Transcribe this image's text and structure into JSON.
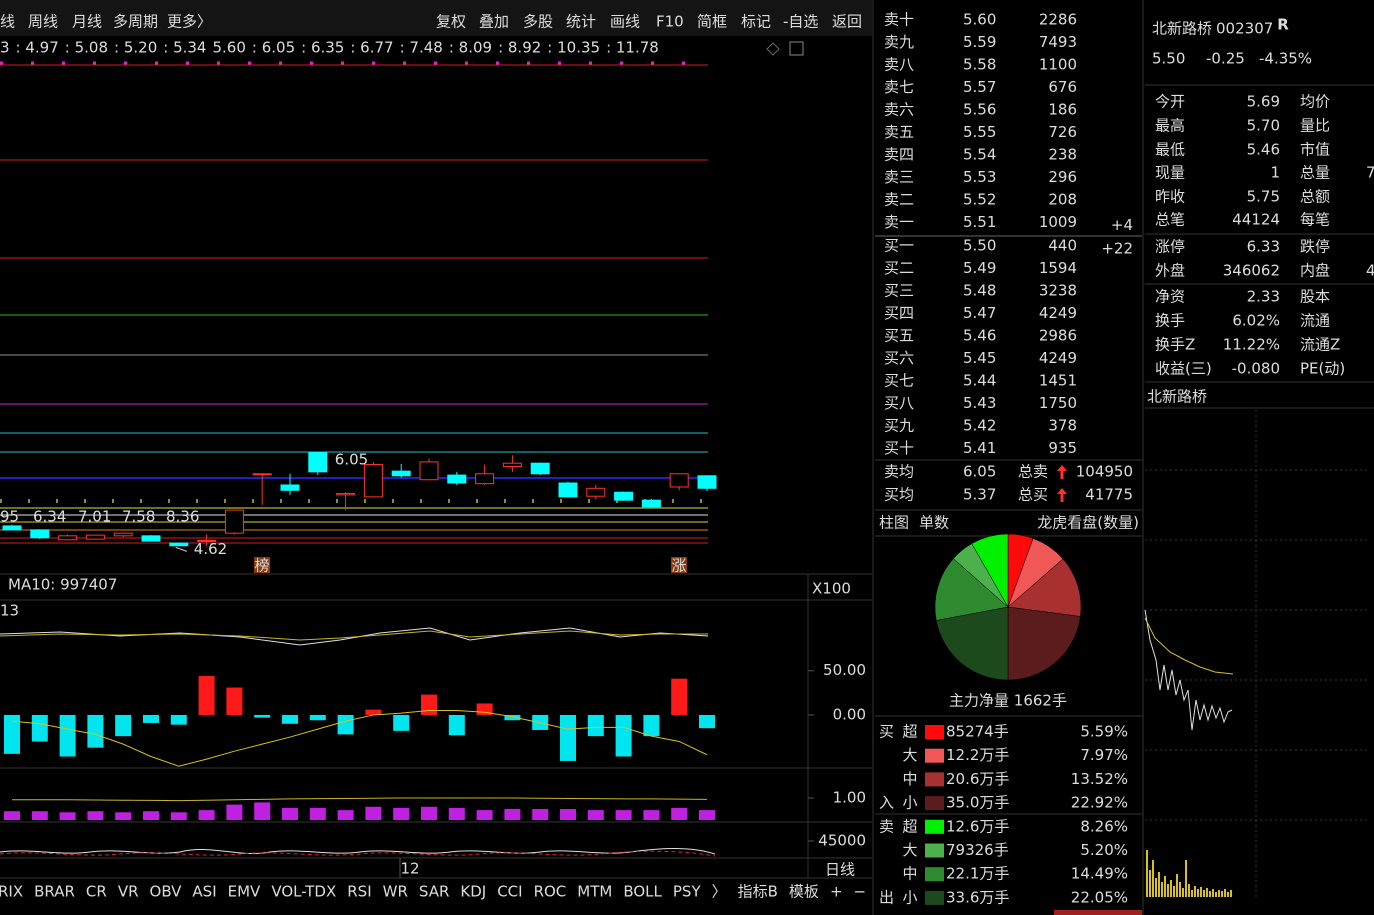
{
  "toolbar": {
    "left": [
      "线",
      "周线",
      "月线",
      "多周期",
      "更多〉"
    ],
    "right": [
      "复权",
      "叠加",
      "多股",
      "统计",
      "画线",
      "F10",
      "简框",
      "标记",
      "-自选",
      "返回"
    ]
  },
  "ma_row": [
    {
      "label": "3",
      "color": "#ff3030"
    },
    {
      "label": ": 4.97",
      "color": "#ff3030"
    },
    {
      "label": ": 5.08",
      "color": "#f0e040"
    },
    {
      "label": ": 5.20",
      "color": "#f0e040"
    },
    {
      "label": ": 5.34",
      "color": "#ffffff"
    },
    {
      "label": "5.60",
      "color": "#2020c0"
    },
    {
      "label": ": 6.05",
      "color": "#30e0f0"
    },
    {
      "label": ": 6.35",
      "color": "#30e0f0"
    },
    {
      "label": ": 6.77",
      "color": "#ff30ff"
    },
    {
      "label": ": 7.48",
      "color": "#909090"
    },
    {
      "label": ": 8.09",
      "color": "#30e030"
    },
    {
      "label": ": 8.92",
      "color": "#ff3030"
    },
    {
      "label": ": 10.35",
      "color": "#ff3030"
    },
    {
      "label": ": 11.78",
      "color": "#ff3030"
    }
  ],
  "kline": {
    "candles": [
      {
        "o": 4.93,
        "h": 4.95,
        "l": 4.86,
        "c": 4.87
      },
      {
        "o": 4.87,
        "h": 4.88,
        "l": 4.73,
        "c": 4.75
      },
      {
        "o": 4.72,
        "h": 4.8,
        "l": 4.71,
        "c": 4.78
      },
      {
        "o": 4.73,
        "h": 4.8,
        "l": 4.72,
        "c": 4.79
      },
      {
        "o": 4.78,
        "h": 4.83,
        "l": 4.76,
        "c": 4.82
      },
      {
        "o": 4.78,
        "h": 4.79,
        "l": 4.7,
        "c": 4.7
      },
      {
        "o": 4.67,
        "h": 4.68,
        "l": 4.62,
        "c": 4.63
      },
      {
        "o": 4.7,
        "h": 4.8,
        "l": 4.62,
        "c": 4.71
      },
      {
        "o": 4.82,
        "h": 5.17,
        "l": 4.8,
        "c": 5.17
      },
      {
        "o": 5.72,
        "h": 5.72,
        "l": 5.25,
        "c": 5.72
      },
      {
        "o": 5.55,
        "h": 5.72,
        "l": 5.4,
        "c": 5.47
      },
      {
        "o": 6.04,
        "h": 6.05,
        "l": 5.7,
        "c": 5.75
      },
      {
        "o": 5.4,
        "h": 5.44,
        "l": 5.17,
        "c": 5.42
      },
      {
        "o": 5.37,
        "h": 5.9,
        "l": 5.36,
        "c": 5.86
      },
      {
        "o": 5.76,
        "h": 5.87,
        "l": 5.66,
        "c": 5.69
      },
      {
        "o": 5.63,
        "h": 5.95,
        "l": 5.62,
        "c": 5.9
      },
      {
        "o": 5.7,
        "h": 5.75,
        "l": 5.55,
        "c": 5.58
      },
      {
        "o": 5.57,
        "h": 5.86,
        "l": 5.55,
        "c": 5.72
      },
      {
        "o": 5.83,
        "h": 6.0,
        "l": 5.75,
        "c": 5.88
      },
      {
        "o": 5.88,
        "h": 5.89,
        "l": 5.7,
        "c": 5.72
      },
      {
        "o": 5.58,
        "h": 5.6,
        "l": 5.36,
        "c": 5.37
      },
      {
        "o": 5.38,
        "h": 5.55,
        "l": 5.33,
        "c": 5.5
      },
      {
        "o": 5.44,
        "h": 5.45,
        "l": 5.31,
        "c": 5.32
      },
      {
        "o": 5.32,
        "h": 5.34,
        "l": 5.2,
        "c": 5.22
      },
      {
        "o": 5.52,
        "h": 5.72,
        "l": 5.47,
        "c": 5.72
      },
      {
        "o": 5.69,
        "h": 5.7,
        "l": 5.46,
        "c": 5.5
      }
    ],
    "up_color": "#ff3232",
    "down_color": "#00ffff",
    "high_label": 6.05,
    "low_label": 4.62,
    "overlay": [
      "95",
      "6.34",
      "7.01",
      "7.58",
      "8.36"
    ],
    "badges": [
      "榜",
      "涨"
    ]
  },
  "volume_panel": {
    "label": "MA10: 997407",
    "unit": "X100"
  },
  "indicator_1": {
    "label": "13"
  },
  "macd": {
    "type": "bar",
    "ylim": [
      -60,
      130
    ],
    "yticks": [
      {
        "value": 50,
        "label": "50.00"
      },
      {
        "value": 0,
        "label": "0.00"
      }
    ],
    "bars": [
      -44,
      -30,
      -47,
      -37,
      -24,
      -9,
      -11,
      44,
      31,
      -3,
      -10,
      -6,
      -22,
      6,
      -18,
      23,
      -23,
      13,
      -6,
      -17,
      -52,
      -24,
      -47,
      -24,
      41,
      -15
    ],
    "line": [
      -7,
      -10,
      -16,
      -22,
      -33,
      -47,
      -58,
      -50,
      -41,
      -33,
      -25,
      -16,
      -7,
      0,
      2,
      5,
      5,
      3,
      -2,
      -9,
      -16,
      -14,
      -14,
      -24,
      -30,
      -45
    ],
    "up_color": "#ff1a1a",
    "down_color": "#00e5ee",
    "line_color": "#d8c020"
  },
  "indicator_3": {
    "ylim": [
      0,
      2
    ],
    "yticks": [
      {
        "value": 1,
        "label": "1.00"
      }
    ],
    "bars": [
      0.4,
      0.4,
      0.35,
      0.4,
      0.35,
      0.4,
      0.35,
      0.45,
      0.7,
      0.8,
      0.55,
      0.55,
      0.45,
      0.6,
      0.55,
      0.6,
      0.55,
      0.45,
      0.5,
      0.5,
      0.5,
      0.45,
      0.45,
      0.45,
      0.55,
      0.45
    ],
    "line": [
      0.92,
      0.92,
      0.92,
      0.91,
      0.9,
      0.89,
      0.88,
      0.9,
      0.92,
      0.94,
      0.96,
      0.97,
      0.98,
      0.99,
      1.0,
      1.0,
      1.0,
      1.0,
      1.0,
      0.99,
      0.98,
      0.97,
      0.96,
      0.96,
      0.95,
      0.94
    ],
    "bar_color": "#c020e0",
    "line_color": "#c8b428"
  },
  "indicator_4": {
    "yticks": [
      45000
    ]
  },
  "x_axis": {
    "label": "12",
    "period": "日线"
  },
  "bottom_tabs": [
    "RIX",
    "BRAR",
    "CR",
    "VR",
    "OBV",
    "ASI",
    "EMV",
    "VOL-TDX",
    "RSI",
    "WR",
    "SAR",
    "KDJ",
    "CCI",
    "ROC",
    "MTM",
    "BOLL",
    "PSY",
    "〉",
    "指标B",
    "模板",
    "+",
    "−"
  ],
  "order_book": {
    "sell": [
      {
        "label": "卖十",
        "price": "5.60",
        "vol": 2286
      },
      {
        "label": "卖九",
        "price": "5.59",
        "vol": 7493
      },
      {
        "label": "卖八",
        "price": "5.58",
        "vol": 1100
      },
      {
        "label": "卖七",
        "price": "5.57",
        "vol": 676
      },
      {
        "label": "卖六",
        "price": "5.56",
        "vol": 186
      },
      {
        "label": "卖五",
        "price": "5.55",
        "vol": 726
      },
      {
        "label": "卖四",
        "price": "5.54",
        "vol": 238
      },
      {
        "label": "卖三",
        "price": "5.53",
        "vol": 296
      },
      {
        "label": "卖二",
        "price": "5.52",
        "vol": 208
      },
      {
        "label": "卖一",
        "price": "5.51",
        "vol": 1009,
        "chg": "+4"
      }
    ],
    "buy": [
      {
        "label": "买一",
        "price": "5.50",
        "vol": 440,
        "chg": "+22"
      },
      {
        "label": "买二",
        "price": "5.49",
        "vol": 1594
      },
      {
        "label": "买三",
        "price": "5.48",
        "vol": 3238
      },
      {
        "label": "买四",
        "price": "5.47",
        "vol": 4249
      },
      {
        "label": "买五",
        "price": "5.46",
        "vol": 2986
      },
      {
        "label": "买六",
        "price": "5.45",
        "vol": 4249
      },
      {
        "label": "买七",
        "price": "5.44",
        "vol": 1451
      },
      {
        "label": "买八",
        "price": "5.43",
        "vol": 1750
      },
      {
        "label": "买九",
        "price": "5.42",
        "vol": 378
      },
      {
        "label": "买十",
        "price": "5.41",
        "vol": 935
      }
    ],
    "avg": [
      {
        "label": "卖均",
        "price": "6.05",
        "total_label": "总卖",
        "total": 104950,
        "color": "#ff3030"
      },
      {
        "label": "买均",
        "price": "5.37",
        "total_label": "总买",
        "total": 41775,
        "color": "#20e020"
      }
    ]
  },
  "pie_tabs": [
    "柱图",
    "单数"
  ],
  "pie_title": "龙虎看盘(数量)",
  "pie": {
    "type": "pie",
    "values": [
      5.59,
      7.97,
      13.52,
      22.92,
      8.26,
      5.2,
      14.49,
      22.05
    ],
    "value_labels": [
      "5.59%",
      "7.97%",
      "13.52%",
      "22.92%",
      "8.26%",
      "5.20%",
      "14.49%",
      "22.05%"
    ],
    "colors": [
      "#ff0a0a",
      "#f05858",
      "#a83030",
      "#5a1c1c",
      "#00f000",
      "#4cb04c",
      "#2e8a2e",
      "#1c4a1c"
    ]
  },
  "net_flow": "主力净量 1662手",
  "flow": {
    "buy_side": [
      "买",
      "入"
    ],
    "sell_side": [
      "卖",
      "出"
    ],
    "sizes": [
      "超",
      "大",
      "中",
      "小",
      "超",
      "大",
      "中",
      "小"
    ],
    "amounts": [
      "85274手",
      "12.2万手",
      "20.6万手",
      "35.0万手",
      "12.6万手",
      "79326手",
      "22.1万手",
      "33.6万手"
    ]
  },
  "quote": {
    "name": "北新路桥",
    "code": "002307",
    "flag": "R",
    "price": "5.50",
    "change": "-0.25",
    "pct": "-4.35%"
  },
  "info": [
    {
      "l": "今开",
      "v": "5.69",
      "c": "#20e020",
      "l2": "均价"
    },
    {
      "l": "最高",
      "v": "5.70",
      "c": "#20e020",
      "l2": "量比"
    },
    {
      "l": "最低",
      "v": "5.46",
      "c": "#20e020",
      "l2": "市值"
    },
    {
      "l": "现量",
      "v": "1",
      "c": "#20e020",
      "l2": "总量",
      "v2": "7"
    },
    {
      "l": "昨收",
      "v": "5.75",
      "c": "#e0e0e0",
      "l2": "总额"
    },
    {
      "l": "总笔",
      "v": "44124",
      "c": "#e0e0e0",
      "l2": "每笔"
    },
    {
      "l": "涨停",
      "v": "6.33",
      "c": "#ff3030",
      "l2": "跌停"
    },
    {
      "l": "外盘",
      "v": "346062",
      "c": "#ff3030",
      "l2": "内盘",
      "v2": "4"
    },
    {
      "l": "净资",
      "v": "2.33",
      "c": "#e0e0e0",
      "l2": "股本"
    },
    {
      "l": "换手",
      "v": "6.02%",
      "c": "#e0e0e0",
      "l2": "流通"
    },
    {
      "l": "换手Z",
      "v": "11.22%",
      "c": "#e0e0e0",
      "l2": "流通Z"
    },
    {
      "l": "收益(三)",
      "v": "-0.080",
      "c": "#e0e0e0",
      "l2": "PE(动)"
    }
  ],
  "mini_chart": {
    "title": "北新路桥"
  }
}
